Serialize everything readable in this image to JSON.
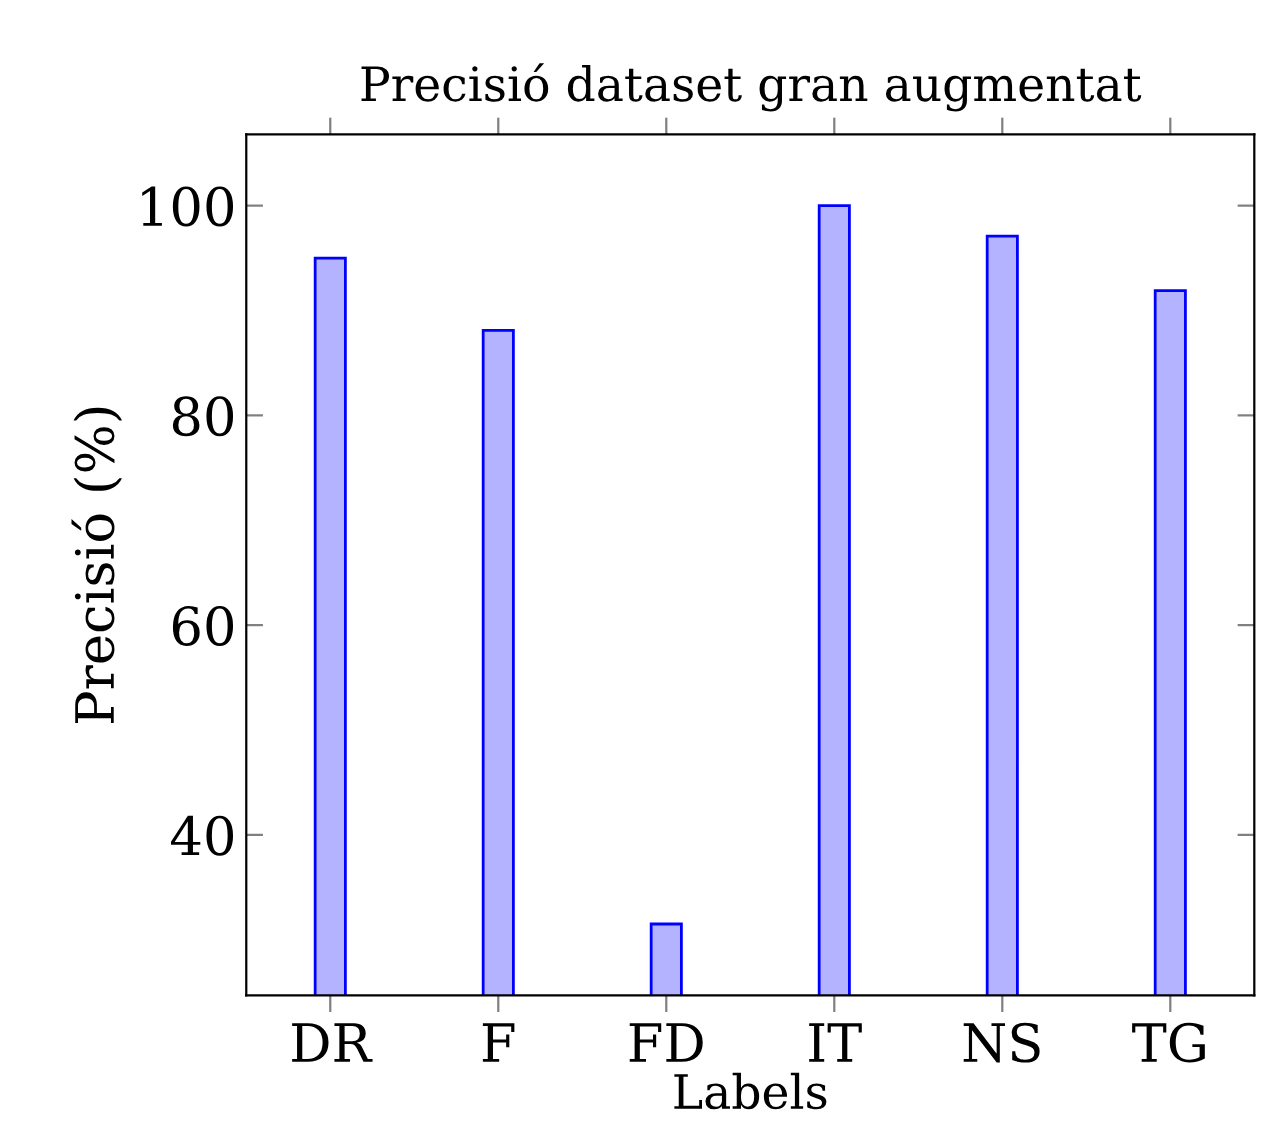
{
  "chart_data": {
    "type": "bar",
    "title": "Precisió dataset gran augmentat",
    "xlabel": "Labels",
    "ylabel": "Precisió (%)",
    "categories": [
      "DR",
      "F",
      "FD",
      "IT",
      "NS",
      "TG"
    ],
    "series": [
      {
        "color": "#b3b3ff",
        "values": [
          95.0,
          88.1,
          31.5,
          100.0,
          97.1,
          91.9
        ]
      }
    ],
    "ylim": [
      24.7,
      106.8
    ],
    "yticks": [
      40,
      60,
      80,
      100
    ],
    "grid": false,
    "legend": false
  }
}
